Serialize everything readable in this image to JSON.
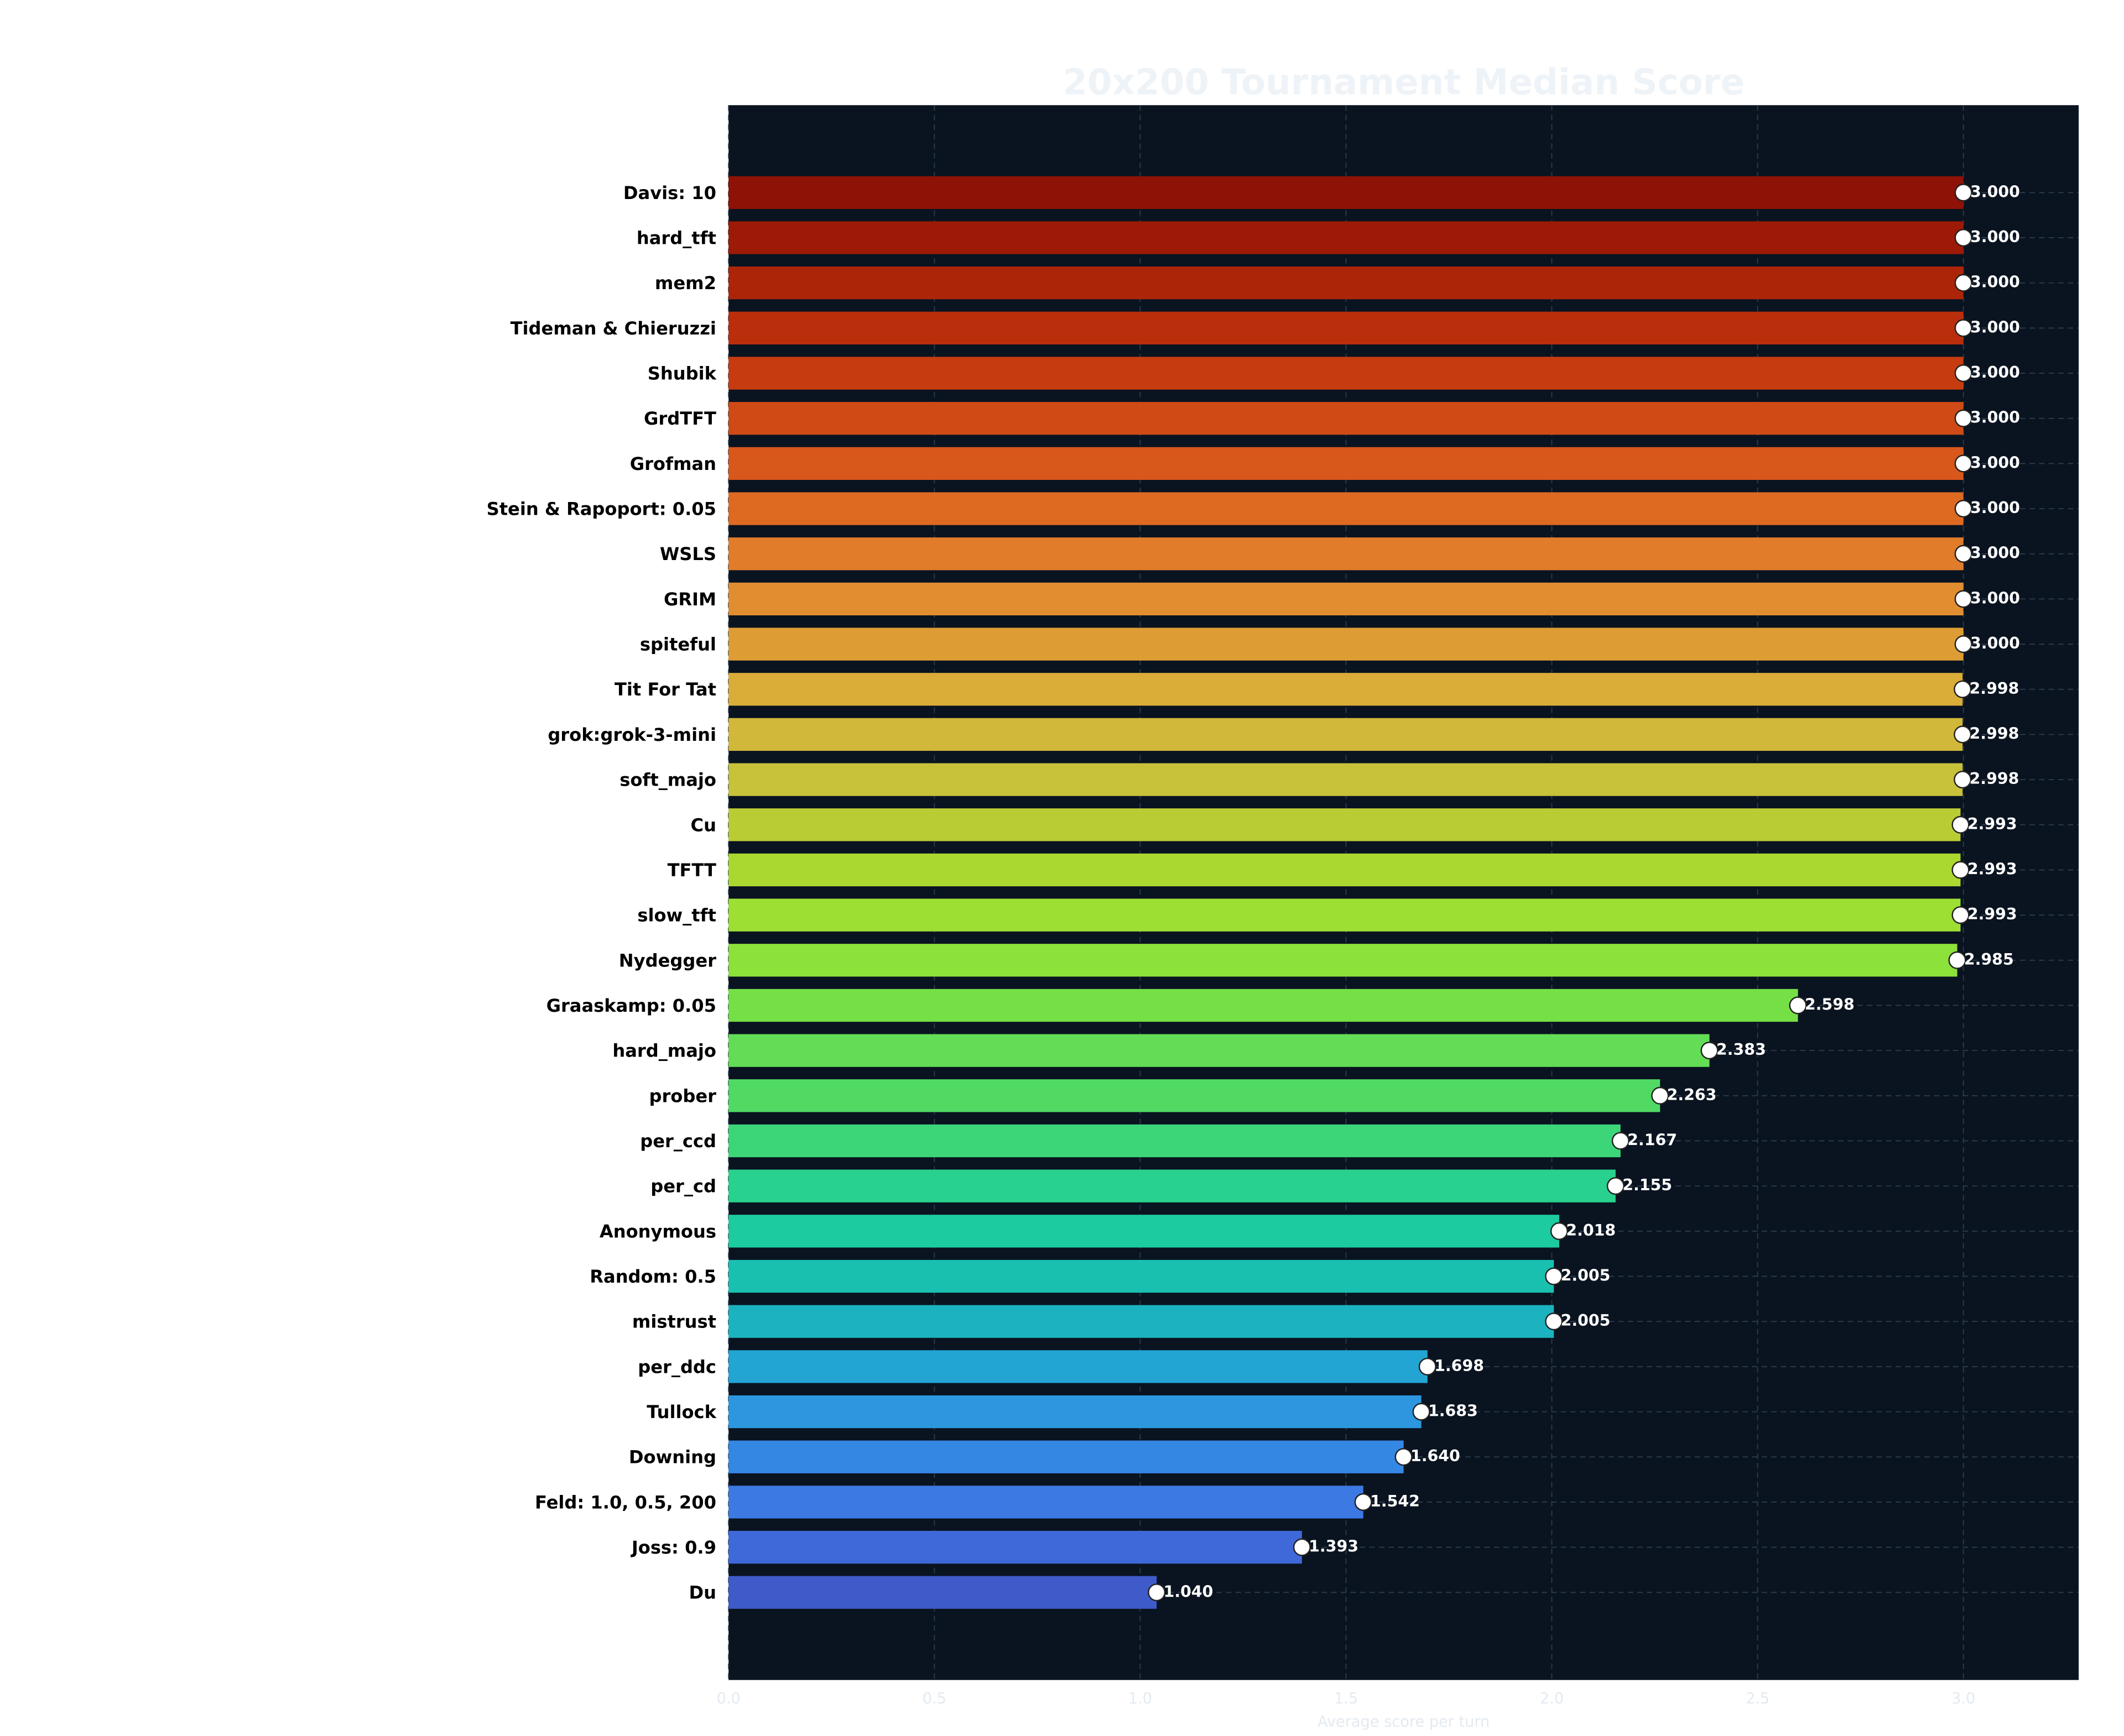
{
  "chart_data": {
    "type": "bar",
    "orientation": "horizontal",
    "title": "20x200 Tournament Median Score",
    "xlabel": "Average score per turn",
    "categories": [
      "Davis: 10",
      "hard_tft",
      "mem2",
      "Tideman & Chieruzzi",
      "Shubik",
      "GrdTFT",
      "Grofman",
      "Stein & Rapoport: 0.05",
      "WSLS",
      "GRIM",
      "spiteful",
      "Tit For Tat",
      "grok:grok-3-mini",
      "soft_majo",
      "Cu",
      "TFTT",
      "slow_tft",
      "Nydegger",
      "Graaskamp: 0.05",
      "hard_majo",
      "prober",
      "per_ccd",
      "per_cd",
      "Anonymous",
      "Random: 0.5",
      "mistrust",
      "per_ddc",
      "Tullock",
      "Downing",
      "Feld: 1.0, 0.5, 200",
      "Joss: 0.9",
      "Du"
    ],
    "values": [
      3.0,
      3.0,
      3.0,
      3.0,
      3.0,
      3.0,
      3.0,
      3.0,
      3.0,
      3.0,
      3.0,
      2.998,
      2.998,
      2.998,
      2.993,
      2.993,
      2.993,
      2.985,
      2.598,
      2.383,
      2.263,
      2.167,
      2.155,
      2.018,
      2.005,
      2.005,
      1.698,
      1.683,
      1.64,
      1.542,
      1.393,
      1.04
    ],
    "value_labels": [
      "3.000",
      "3.000",
      "3.000",
      "3.000",
      "3.000",
      "3.000",
      "3.000",
      "3.000",
      "3.000",
      "3.000",
      "3.000",
      "2.998",
      "2.998",
      "2.998",
      "2.993",
      "2.993",
      "2.993",
      "2.985",
      "2.598",
      "2.383",
      "2.263",
      "2.167",
      "2.155",
      "2.018",
      "2.005",
      "2.005",
      "1.698",
      "1.683",
      "1.640",
      "1.542",
      "1.393",
      "1.040"
    ],
    "colors": [
      "#8e1206",
      "#9c1a06",
      "#ad2508",
      "#bb2e0b",
      "#c63c10",
      "#d04a15",
      "#d8571b",
      "#de6a22",
      "#e07c2a",
      "#e08e30",
      "#de9d34",
      "#daac38",
      "#d2b83a",
      "#c8c13a",
      "#bacc34",
      "#aad830",
      "#9ddf32",
      "#8ce13b",
      "#75e046",
      "#63dd55",
      "#50da64",
      "#3cd679",
      "#28d18d",
      "#1ccba0",
      "#19c0b0",
      "#1cb3c0",
      "#22a5d3",
      "#2c97de",
      "#3587e4",
      "#3c79e2",
      "#3f69d8",
      "#3e5bc9"
    ],
    "background": "#0a1320",
    "xlim": [
      0,
      3.28
    ],
    "xticks": [
      {
        "value": 0,
        "label": "0.0"
      },
      0.5,
      {
        "value": 1,
        "label": "1.0"
      },
      1.5,
      {
        "value": 2,
        "label": "2.0"
      },
      2.5,
      {
        "value": 3,
        "label": "3.0"
      }
    ],
    "grid": true
  }
}
